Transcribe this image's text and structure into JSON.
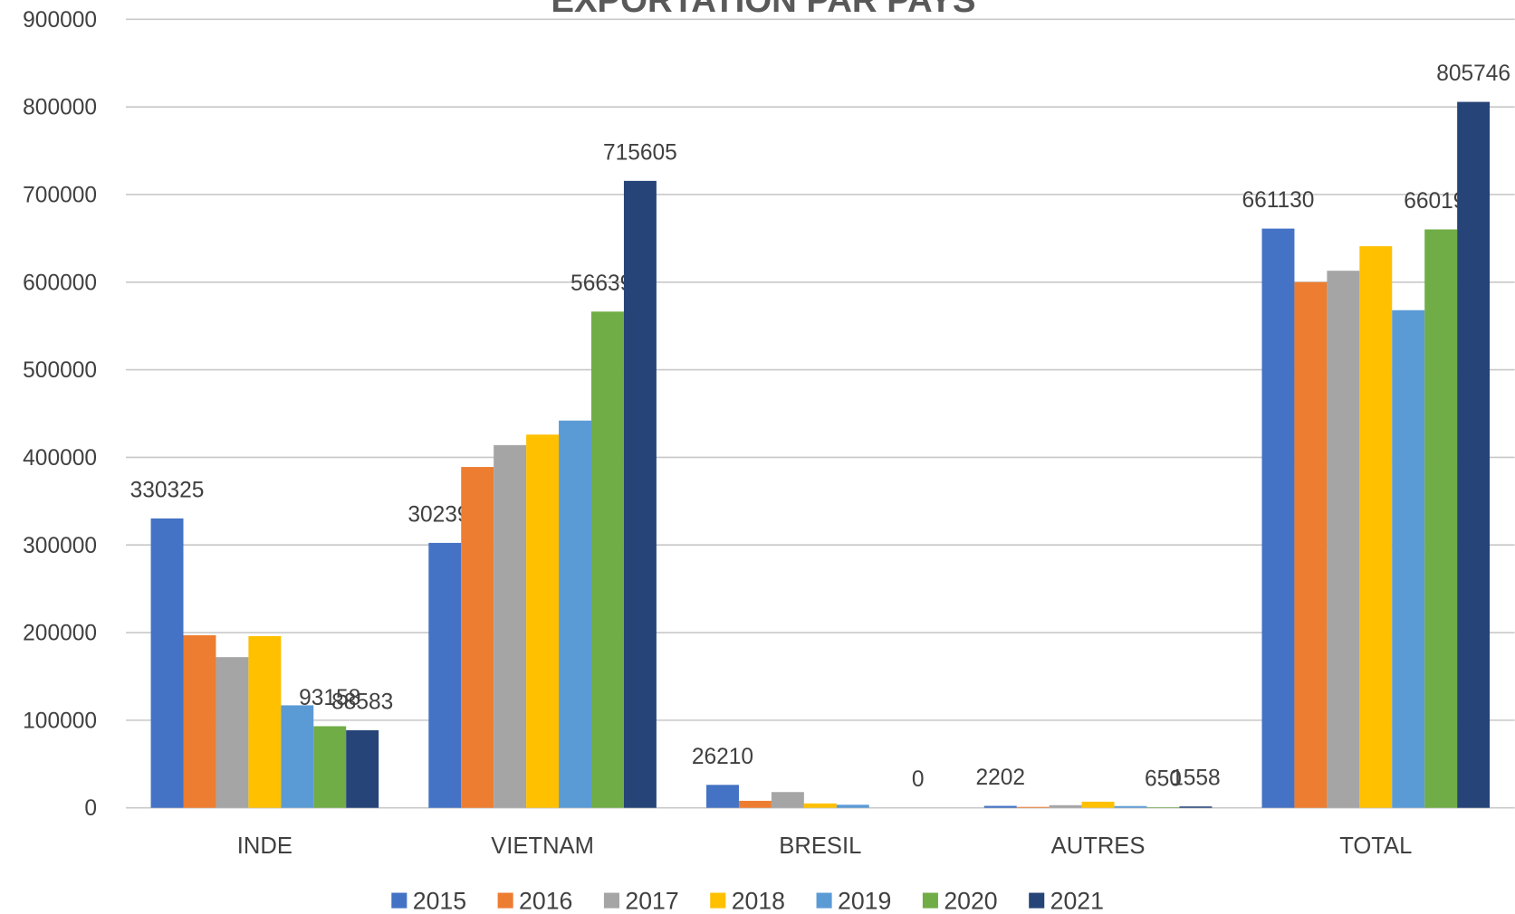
{
  "chart_data": {
    "type": "bar",
    "title": "EXPORTATION PAR PAYS",
    "categories": [
      "INDE",
      "VIETNAM",
      "BRESIL",
      "AUTRES",
      "TOTAL"
    ],
    "series": [
      {
        "name": "2015",
        "color": "#4472c4",
        "values": [
          330325,
          302393,
          26210,
          2202,
          661130
        ],
        "value_labels": [
          "330325",
          "302393",
          "26210",
          "2202",
          "661130"
        ]
      },
      {
        "name": "2016",
        "color": "#ed7d31",
        "values": [
          197000,
          389000,
          8000,
          1000,
          600000
        ],
        "value_labels": [
          null,
          null,
          null,
          null,
          null
        ]
      },
      {
        "name": "2017",
        "color": "#a5a5a5",
        "values": [
          172000,
          414000,
          18000,
          3000,
          613000
        ],
        "value_labels": [
          null,
          null,
          null,
          null,
          null
        ]
      },
      {
        "name": "2018",
        "color": "#ffc000",
        "values": [
          196000,
          426000,
          5000,
          7000,
          641000
        ],
        "value_labels": [
          null,
          null,
          null,
          null,
          null
        ]
      },
      {
        "name": "2019",
        "color": "#5b9bd5",
        "values": [
          117000,
          442000,
          3500,
          2000,
          568000
        ],
        "value_labels": [
          null,
          null,
          null,
          null,
          null
        ]
      },
      {
        "name": "2020",
        "color": "#70ad47",
        "values": [
          93158,
          566390,
          0,
          650,
          660198
        ],
        "value_labels": [
          "93158",
          "566390",
          null,
          "650",
          "660198"
        ]
      },
      {
        "name": "2021",
        "color": "#264478",
        "values": [
          88583,
          715605,
          0,
          1558,
          805746
        ],
        "value_labels": [
          "88583",
          "715605",
          "0",
          "1558",
          "805746"
        ]
      }
    ],
    "ylim": [
      0,
      900000
    ],
    "yticks": [
      0,
      100000,
      200000,
      300000,
      400000,
      500000,
      600000,
      700000,
      800000,
      900000
    ],
    "grid": true,
    "legend": "bottom"
  }
}
